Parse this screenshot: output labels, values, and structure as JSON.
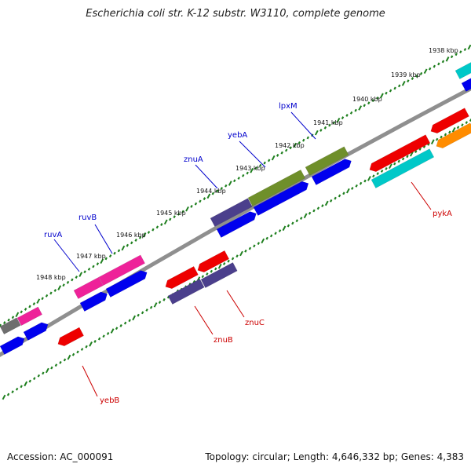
{
  "title": "Escherichia coli str. K-12 substr. W3110, complete genome",
  "footer": {
    "accession": "Accession: AC_000091",
    "summary": "Topology: circular; Length: 4,646,332 bp; Genes: 4,383"
  },
  "colors": {
    "backbone": "#8f8f8f",
    "tick": "#1e7f1e",
    "label_forward": "#0000cc",
    "label_reverse": "#cc0000"
  },
  "kbp_labels": [
    "1938 kbp",
    "1939 kbp",
    "1940 kbp",
    "1941 kbp",
    "1942 kbp",
    "1943 kbp",
    "1944 kbp",
    "1945 kbp",
    "1946 kbp",
    "1947 kbp",
    "1948 kbp"
  ],
  "gene_labels": [
    {
      "name": "ruvA",
      "strand": "forward"
    },
    {
      "name": "ruvB",
      "strand": "forward"
    },
    {
      "name": "znuA",
      "strand": "forward"
    },
    {
      "name": "yebA",
      "strand": "forward"
    },
    {
      "name": "lpxM",
      "strand": "forward"
    },
    {
      "name": "pykA",
      "strand": "reverse"
    },
    {
      "name": "znuC",
      "strand": "reverse"
    },
    {
      "name": "znuB",
      "strand": "reverse"
    },
    {
      "name": "yebB",
      "strand": "reverse"
    }
  ],
  "feature_colors": {
    "blue": "#0000ee",
    "pink": "#ee2299",
    "olive": "#6f8f2a",
    "slate": "#4b3f8c",
    "red": "#ee0000",
    "cyan": "#00c8c8",
    "orange": "#ff8c00",
    "gray": "#6e6e6e"
  }
}
